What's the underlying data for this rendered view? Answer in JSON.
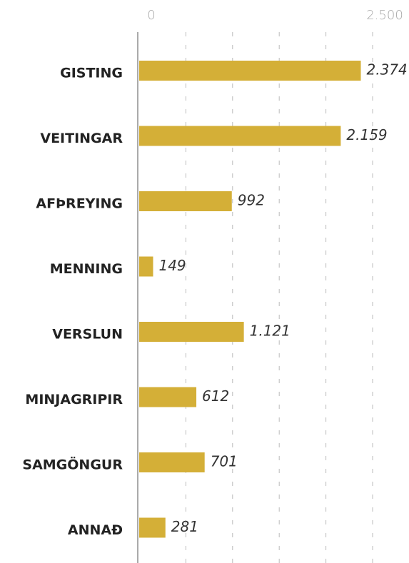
{
  "chart_data": {
    "type": "bar",
    "orientation": "horizontal",
    "categories": [
      "GISTING",
      "VEITINGAR",
      "AFÞREYING",
      "MENNING",
      "VERSLUN",
      "MINJAGRIPIR",
      "SAMGÖNGUR",
      "ANNAÐ"
    ],
    "values": [
      2374,
      2159,
      992,
      149,
      1121,
      612,
      701,
      281
    ],
    "value_labels": [
      "2.374",
      "2.159",
      "992",
      "149",
      "1.121",
      "612",
      "701",
      "281"
    ],
    "color": "#d4af37",
    "xlim": [
      0,
      2500
    ],
    "xticks": [
      0,
      {
        "value": 500,
        "label": null
      },
      {
        "value": 1000,
        "label": null
      },
      {
        "value": 1500,
        "label": null
      },
      {
        "value": 2000,
        "label": null
      },
      {
        "value": 2500,
        "label": "2.500"
      }
    ],
    "grid": true
  }
}
